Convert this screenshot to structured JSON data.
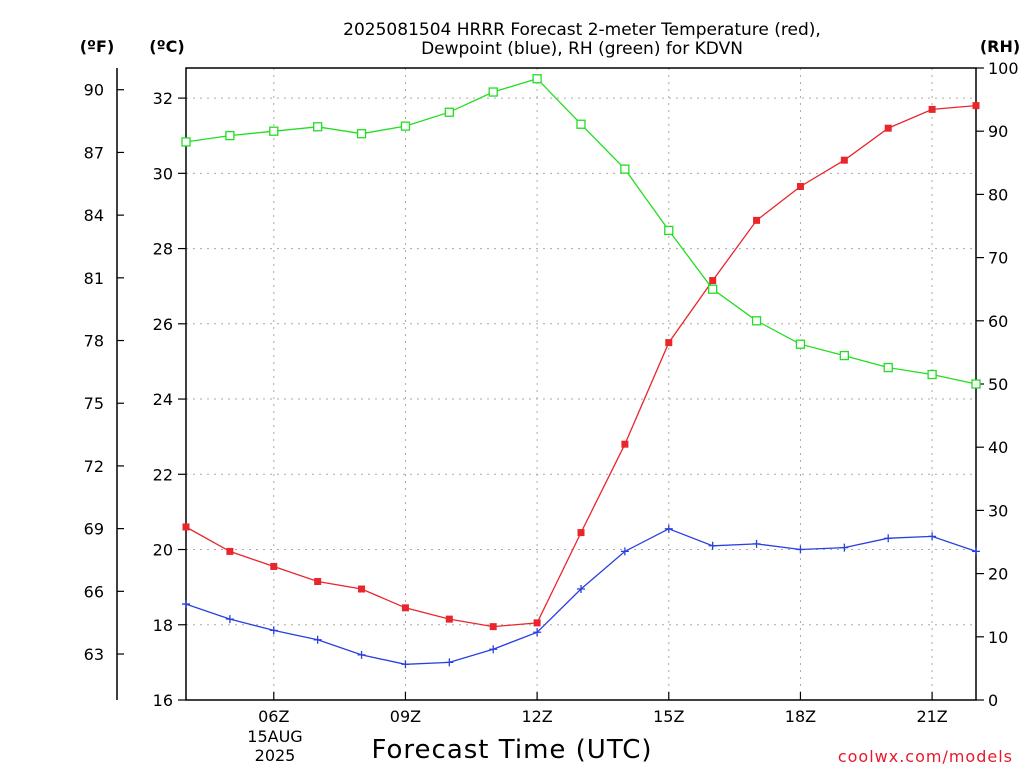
{
  "chart_data": {
    "type": "line",
    "title_lines": [
      "2025081504 HRRR Forecast 2-meter Temperature (red),",
      "Dewpoint (blue), RH (green) for KDVN"
    ],
    "xlabel": "Forecast Time (UTC)",
    "date_label_lines": [
      "15AUG",
      "2025"
    ],
    "credit": "coolwx.com/models",
    "y_units": {
      "fahrenheit": "(ºF)",
      "celsius": "(ºC)",
      "rh": "(RH)"
    },
    "x_range_hours": [
      4,
      22
    ],
    "x_ticks": [
      {
        "hour": 6,
        "label": "06Z"
      },
      {
        "hour": 9,
        "label": "09Z"
      },
      {
        "hour": 12,
        "label": "12Z"
      },
      {
        "hour": 15,
        "label": "15Z"
      },
      {
        "hour": 18,
        "label": "18Z"
      },
      {
        "hour": 21,
        "label": "21Z"
      }
    ],
    "ylim_celsius": [
      16,
      32.8
    ],
    "ylim_rh": [
      0,
      100
    ],
    "celsius_ticks": [
      16,
      18,
      20,
      22,
      24,
      26,
      28,
      30,
      32
    ],
    "fahrenheit_ticks": [
      63,
      66,
      69,
      72,
      75,
      78,
      81,
      84,
      87,
      90
    ],
    "rh_ticks": [
      0,
      10,
      20,
      30,
      40,
      50,
      60,
      70,
      80,
      90,
      100
    ],
    "grid": true,
    "hours": [
      4,
      5,
      6,
      7,
      8,
      9,
      10,
      11,
      12,
      13,
      14,
      15,
      16,
      17,
      18,
      19,
      20,
      21,
      22
    ],
    "series": [
      {
        "name": "Temperature (red)",
        "axis": "celsius",
        "color": "#e8262c",
        "marker": "filled-square",
        "values": [
          20.6,
          19.95,
          19.55,
          19.15,
          18.95,
          18.45,
          18.15,
          17.95,
          18.05,
          20.45,
          22.8,
          25.5,
          27.15,
          28.75,
          29.65,
          30.35,
          31.2,
          31.7,
          31.8
        ]
      },
      {
        "name": "Dewpoint (blue)",
        "axis": "celsius",
        "color": "#2a3fe0",
        "marker": "plus",
        "values": [
          18.55,
          18.15,
          17.85,
          17.6,
          17.2,
          16.95,
          17.0,
          17.35,
          17.8,
          18.95,
          19.95,
          20.55,
          20.1,
          20.15,
          20.0,
          20.05,
          20.3,
          20.35,
          19.95
        ]
      },
      {
        "name": "RH (green)",
        "axis": "rh",
        "color": "#22dd22",
        "marker": "open-square",
        "values": [
          88.3,
          89.3,
          90.0,
          90.7,
          89.6,
          90.8,
          93.0,
          96.2,
          98.3,
          91.1,
          84.0,
          74.3,
          65.0,
          60.0,
          56.3,
          54.5,
          52.6,
          51.5,
          50.0
        ]
      }
    ]
  }
}
